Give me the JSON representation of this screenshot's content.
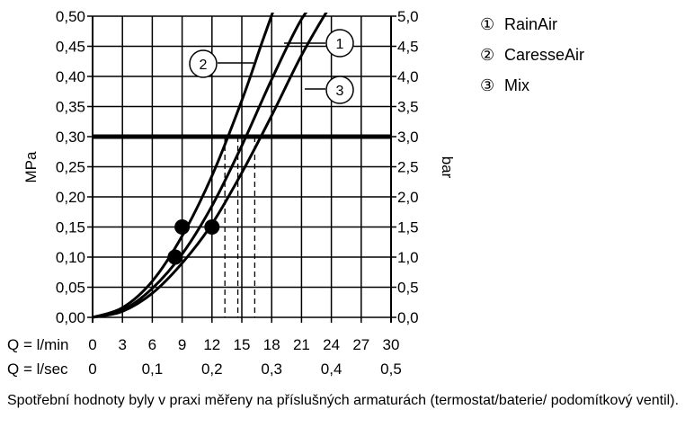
{
  "chart_data": {
    "type": "line",
    "x_min": 0,
    "x_max": 30,
    "y_min": 0,
    "y_max": 0.5,
    "grid": true,
    "left_axis": {
      "label": "MPa",
      "ticks": [
        "0,00",
        "0,05",
        "0,10",
        "0,15",
        "0,20",
        "0,25",
        "0,30",
        "0,35",
        "0,40",
        "0,45",
        "0,50"
      ]
    },
    "right_axis": {
      "label": "bar",
      "ticks": [
        "0,0",
        "0,5",
        "1,0",
        "1,5",
        "2,0",
        "2,5",
        "3,0",
        "3,5",
        "4,0",
        "4,5",
        "5,0"
      ]
    },
    "x_axis_lmin": {
      "label": "Q = l/min",
      "ticks": [
        "0",
        "3",
        "6",
        "9",
        "12",
        "15",
        "18",
        "21",
        "24",
        "27",
        "30"
      ]
    },
    "x_axis_lsec": {
      "label": "Q = l/sec",
      "ticks": [
        "0",
        "0,1",
        "0,2",
        "0,3",
        "0,4",
        "0,5"
      ]
    },
    "reference_line_y": 0.3,
    "series": [
      {
        "name": "RainAir",
        "marker": "1",
        "x": [
          0,
          3,
          6,
          9,
          12,
          15,
          18,
          21,
          23.3
        ],
        "y": [
          0,
          0.012,
          0.048,
          0.105,
          0.185,
          0.285,
          0.395,
          0.495,
          0.54
        ]
      },
      {
        "name": "CaresseAir",
        "marker": "2",
        "x": [
          0,
          3,
          6,
          9,
          12,
          15,
          17,
          18.4
        ],
        "y": [
          0,
          0.016,
          0.06,
          0.135,
          0.235,
          0.36,
          0.455,
          0.52
        ]
      },
      {
        "name": "Mix",
        "marker": "3",
        "x": [
          0,
          3,
          6,
          9,
          12,
          15,
          18,
          21,
          24,
          25.5
        ],
        "y": [
          0,
          0.01,
          0.04,
          0.09,
          0.155,
          0.24,
          0.335,
          0.435,
          0.52,
          0.555
        ]
      }
    ],
    "points": [
      {
        "x": 8.3,
        "y": 0.1
      },
      {
        "x": 9.0,
        "y": 0.15
      },
      {
        "x": 12.0,
        "y": 0.15
      }
    ],
    "dashed_x": [
      13.3,
      14.6,
      16.3
    ],
    "legend": [
      {
        "symbol": "①",
        "text": "RainAir"
      },
      {
        "symbol": "②",
        "text": "CaresseAir"
      },
      {
        "symbol": "③",
        "text": "Mix"
      }
    ],
    "callouts": [
      {
        "text": "1",
        "series": "RainAir"
      },
      {
        "text": "2",
        "series": "CaresseAir"
      },
      {
        "text": "3",
        "series": "Mix"
      }
    ]
  },
  "footnote": "Spotřební hodnoty byly v praxi měřeny na příslušných armaturách (termostat/baterie/ podomítkový ventil)."
}
